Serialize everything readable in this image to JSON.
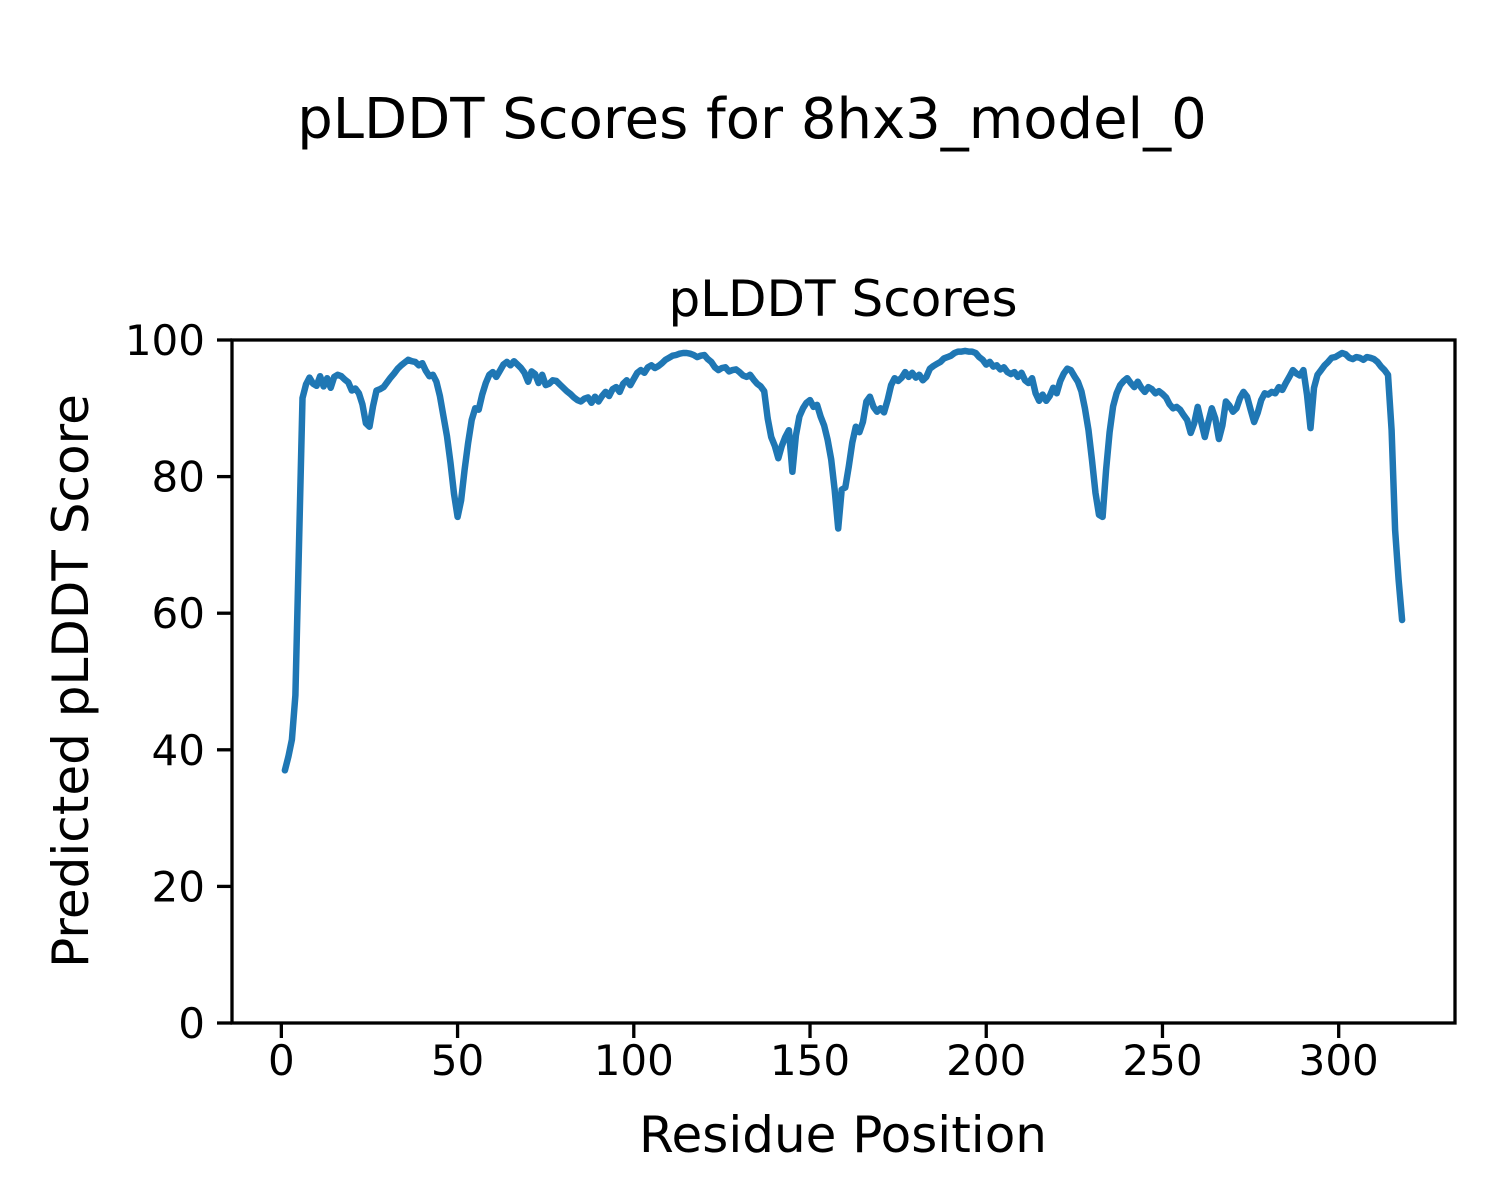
{
  "chart_data": {
    "type": "line",
    "suptitle": "pLDDT Scores for 8hx3_model_0",
    "title": "pLDDT Scores",
    "xlabel": "Residue Position",
    "ylabel": "Predicted pLDDT Score",
    "xlim": [
      -14,
      333
    ],
    "ylim": [
      0,
      100
    ],
    "xticks": [
      0,
      50,
      100,
      150,
      200,
      250,
      300
    ],
    "yticks": [
      0,
      20,
      40,
      60,
      80,
      100
    ],
    "grid": false,
    "legend": "none",
    "line_color": "#1f77b4",
    "axes_color": "#000000",
    "background_color": "#ffffff",
    "x_start": 1,
    "x_step": 1,
    "series_name": "pLDDT",
    "values": [
      37,
      39,
      41.5,
      48,
      70,
      91.5,
      93.5,
      94.5,
      93.6,
      93.3,
      94.7,
      93.2,
      94.4,
      93.0,
      94.6,
      94.9,
      94.7,
      94.2,
      93.8,
      92.6,
      92.9,
      92.2,
      90.6,
      87.8,
      87.3,
      90.3,
      92.6,
      92.8,
      93.1,
      93.8,
      94.5,
      95.1,
      95.8,
      96.3,
      96.7,
      97.1,
      96.9,
      96.8,
      96.3,
      96.6,
      95.5,
      94.7,
      94.9,
      93.9,
      91.8,
      88.8,
      85.9,
      82.0,
      77.5,
      74.1,
      76.5,
      81.0,
      84.9,
      88.3,
      90.0,
      89.8,
      92.0,
      93.7,
      94.9,
      95.3,
      94.6,
      95.5,
      96.4,
      96.8,
      96.3,
      96.9,
      96.4,
      95.9,
      95.2,
      93.9,
      95.4,
      95.0,
      93.7,
      94.9,
      93.4,
      93.6,
      94.1,
      94.0,
      93.5,
      93.0,
      92.5,
      92.1,
      91.6,
      91.2,
      91.0,
      91.4,
      91.6,
      90.8,
      91.7,
      91.0,
      91.8,
      92.4,
      91.8,
      92.8,
      93.1,
      92.4,
      93.6,
      94.1,
      93.4,
      94.3,
      95.2,
      95.6,
      95.2,
      96.0,
      96.3,
      95.9,
      96.2,
      96.6,
      97.1,
      97.4,
      97.7,
      97.8,
      98.0,
      98.1,
      98.1,
      98.0,
      97.8,
      97.5,
      97.7,
      97.8,
      97.2,
      96.8,
      96.0,
      95.6,
      95.9,
      96.0,
      95.4,
      95.6,
      95.7,
      95.3,
      94.8,
      94.6,
      94.9,
      94.2,
      93.6,
      93.2,
      92.5,
      88.5,
      85.8,
      84.5,
      82.7,
      84.5,
      85.8,
      86.8,
      80.7,
      86.0,
      88.8,
      90.0,
      90.8,
      91.2,
      90.2,
      90.5,
      88.8,
      87.5,
      85.4,
      82.5,
      78.0,
      72.4,
      78.1,
      78.4,
      81.5,
      85.0,
      87.3,
      86.5,
      88.0,
      91.0,
      91.7,
      90.2,
      89.5,
      90.0,
      89.4,
      91.2,
      93.4,
      94.4,
      94.0,
      94.5,
      95.3,
      94.6,
      95.2,
      94.5,
      94.9,
      94.1,
      94.6,
      95.8,
      96.2,
      96.5,
      96.8,
      97.3,
      97.5,
      97.7,
      98.1,
      98.3,
      98.3,
      98.4,
      98.3,
      98.3,
      98.1,
      97.5,
      97.1,
      96.4,
      96.8,
      96.1,
      96.3,
      95.7,
      96.0,
      95.3,
      95.0,
      95.3,
      94.6,
      95.2,
      94.1,
      93.7,
      94.4,
      92.2,
      91.1,
      92.0,
      91.1,
      91.8,
      93.0,
      92.2,
      94.0,
      95.1,
      95.8,
      95.6,
      94.7,
      93.9,
      92.5,
      90.0,
      86.8,
      82.4,
      77.6,
      74.4,
      74.1,
      81.0,
      86.5,
      90.3,
      92.2,
      93.4,
      94.0,
      94.4,
      93.7,
      93.1,
      93.9,
      93.0,
      92.4,
      93.1,
      92.8,
      92.2,
      92.5,
      92.1,
      91.6,
      90.6,
      90.0,
      90.2,
      89.8,
      89.0,
      88.3,
      86.4,
      87.8,
      90.2,
      88.0,
      85.8,
      88.0,
      90.0,
      88.5,
      85.5,
      87.5,
      91.0,
      90.4,
      89.5,
      90.0,
      91.5,
      92.4,
      91.7,
      89.8,
      88.0,
      89.3,
      91.2,
      92.2,
      92.0,
      92.4,
      92.2,
      93.1,
      92.7,
      93.7,
      94.6,
      95.6,
      95.1,
      94.8,
      95.6,
      92.0,
      87.1,
      93.0,
      94.9,
      95.6,
      96.3,
      96.8,
      97.4,
      97.5,
      97.8,
      98.1,
      97.9,
      97.4,
      97.2,
      97.5,
      97.4,
      97.1,
      97.5,
      97.4,
      97.2,
      96.8,
      96.1,
      95.6,
      94.9,
      86.8,
      72.2,
      64.9,
      59.0
    ]
  }
}
